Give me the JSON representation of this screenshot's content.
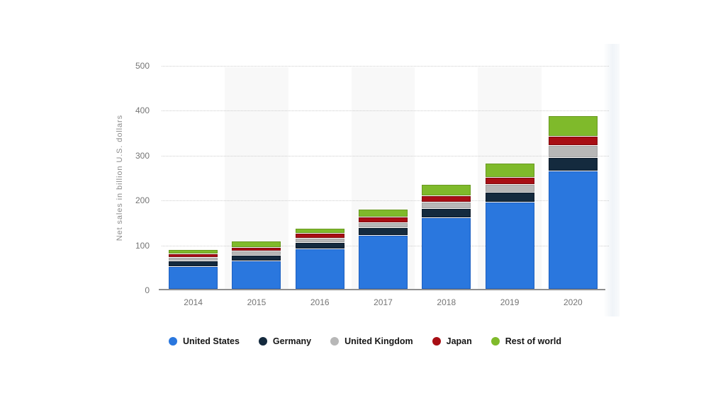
{
  "chart_data": {
    "type": "bar",
    "stacked": true,
    "categories": [
      "2014",
      "2015",
      "2016",
      "2017",
      "2018",
      "2019",
      "2020"
    ],
    "series": [
      {
        "name": "United States",
        "color": "#2a77de",
        "border": "#1d5fc0",
        "values": [
          50.8,
          63.7,
          90.3,
          120.5,
          160.1,
          193.6,
          263.5
        ]
      },
      {
        "name": "Germany",
        "color": "#142a3e",
        "border": "#0b1a29",
        "values": [
          11.9,
          11.8,
          14.1,
          17.0,
          19.9,
          22.2,
          29.6
        ]
      },
      {
        "name": "United Kingdom",
        "color": "#b7b7b7",
        "border": "#a3a3a3",
        "values": [
          8.3,
          9.0,
          9.5,
          11.4,
          14.5,
          17.5,
          26.5
        ]
      },
      {
        "name": "Japan",
        "color": "#a80e14",
        "border": "#7f0a0f",
        "values": [
          7.9,
          8.3,
          10.8,
          11.9,
          13.8,
          16.0,
          20.5
        ]
      },
      {
        "name": "Rest of world",
        "color": "#7fba2b",
        "border": "#68991f",
        "values": [
          10.0,
          14.2,
          11.1,
          17.2,
          24.5,
          31.1,
          46.0
        ]
      }
    ],
    "title": "",
    "xlabel": "",
    "ylabel": "Net sales in billion U.S. dollars",
    "ylim": [
      0,
      500
    ],
    "yticks": [
      0,
      100,
      200,
      300,
      400,
      500
    ],
    "grid": "horizontal-dotted",
    "legend_position": "bottom",
    "column_stripes": "alternating on 2015, 2017, 2019"
  },
  "colors": {
    "background": "#ffffff",
    "stripe": "#f8f8f8",
    "gridline": "#cdcdcd",
    "axis_line": "#8f8f8f",
    "tick_text": "#757575",
    "axis_title_text": "#8c8c8c",
    "legend_text": "#151515"
  }
}
